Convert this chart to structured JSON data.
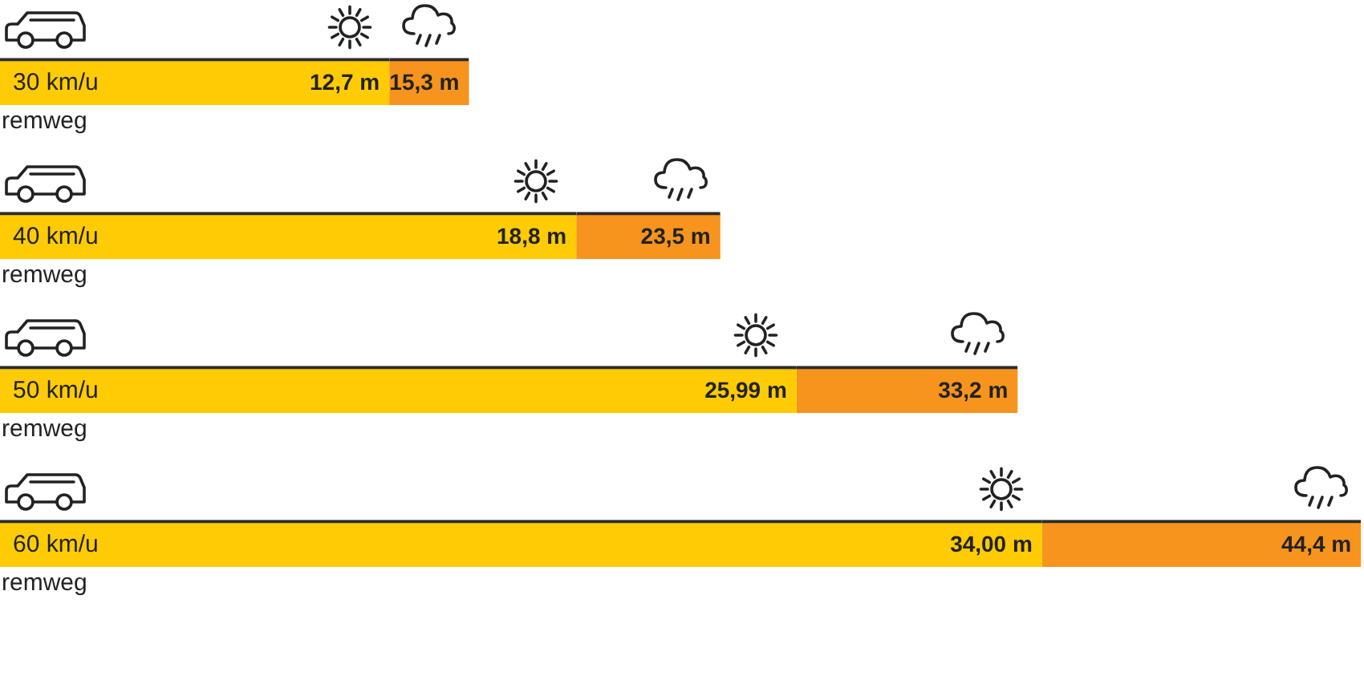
{
  "chart_data": {
    "type": "bar",
    "orientation": "horizontal",
    "stacked": true,
    "categories": [
      "30 km/u",
      "40 km/u",
      "50 km/u",
      "60 km/u"
    ],
    "series": [
      {
        "color": "#ffcb05",
        "values": [
          12.7,
          18.8,
          25.99,
          34.0
        ],
        "value_labels": [
          "12,7 m",
          "18,8 m",
          "25,99 m",
          "34,00 m"
        ]
      },
      {
        "color": "#f7941d",
        "values": [
          2.6,
          4.7,
          7.21,
          10.4
        ]
      }
    ],
    "totals": [
      "15,3 m",
      "23,5 m",
      "33,2 m",
      "44,4 m"
    ],
    "xlim": [
      0,
      44.5
    ],
    "tick_labels": "y",
    "annotations": [
      "remweg",
      "remweg",
      "remweg",
      "remweg"
    ]
  }
}
